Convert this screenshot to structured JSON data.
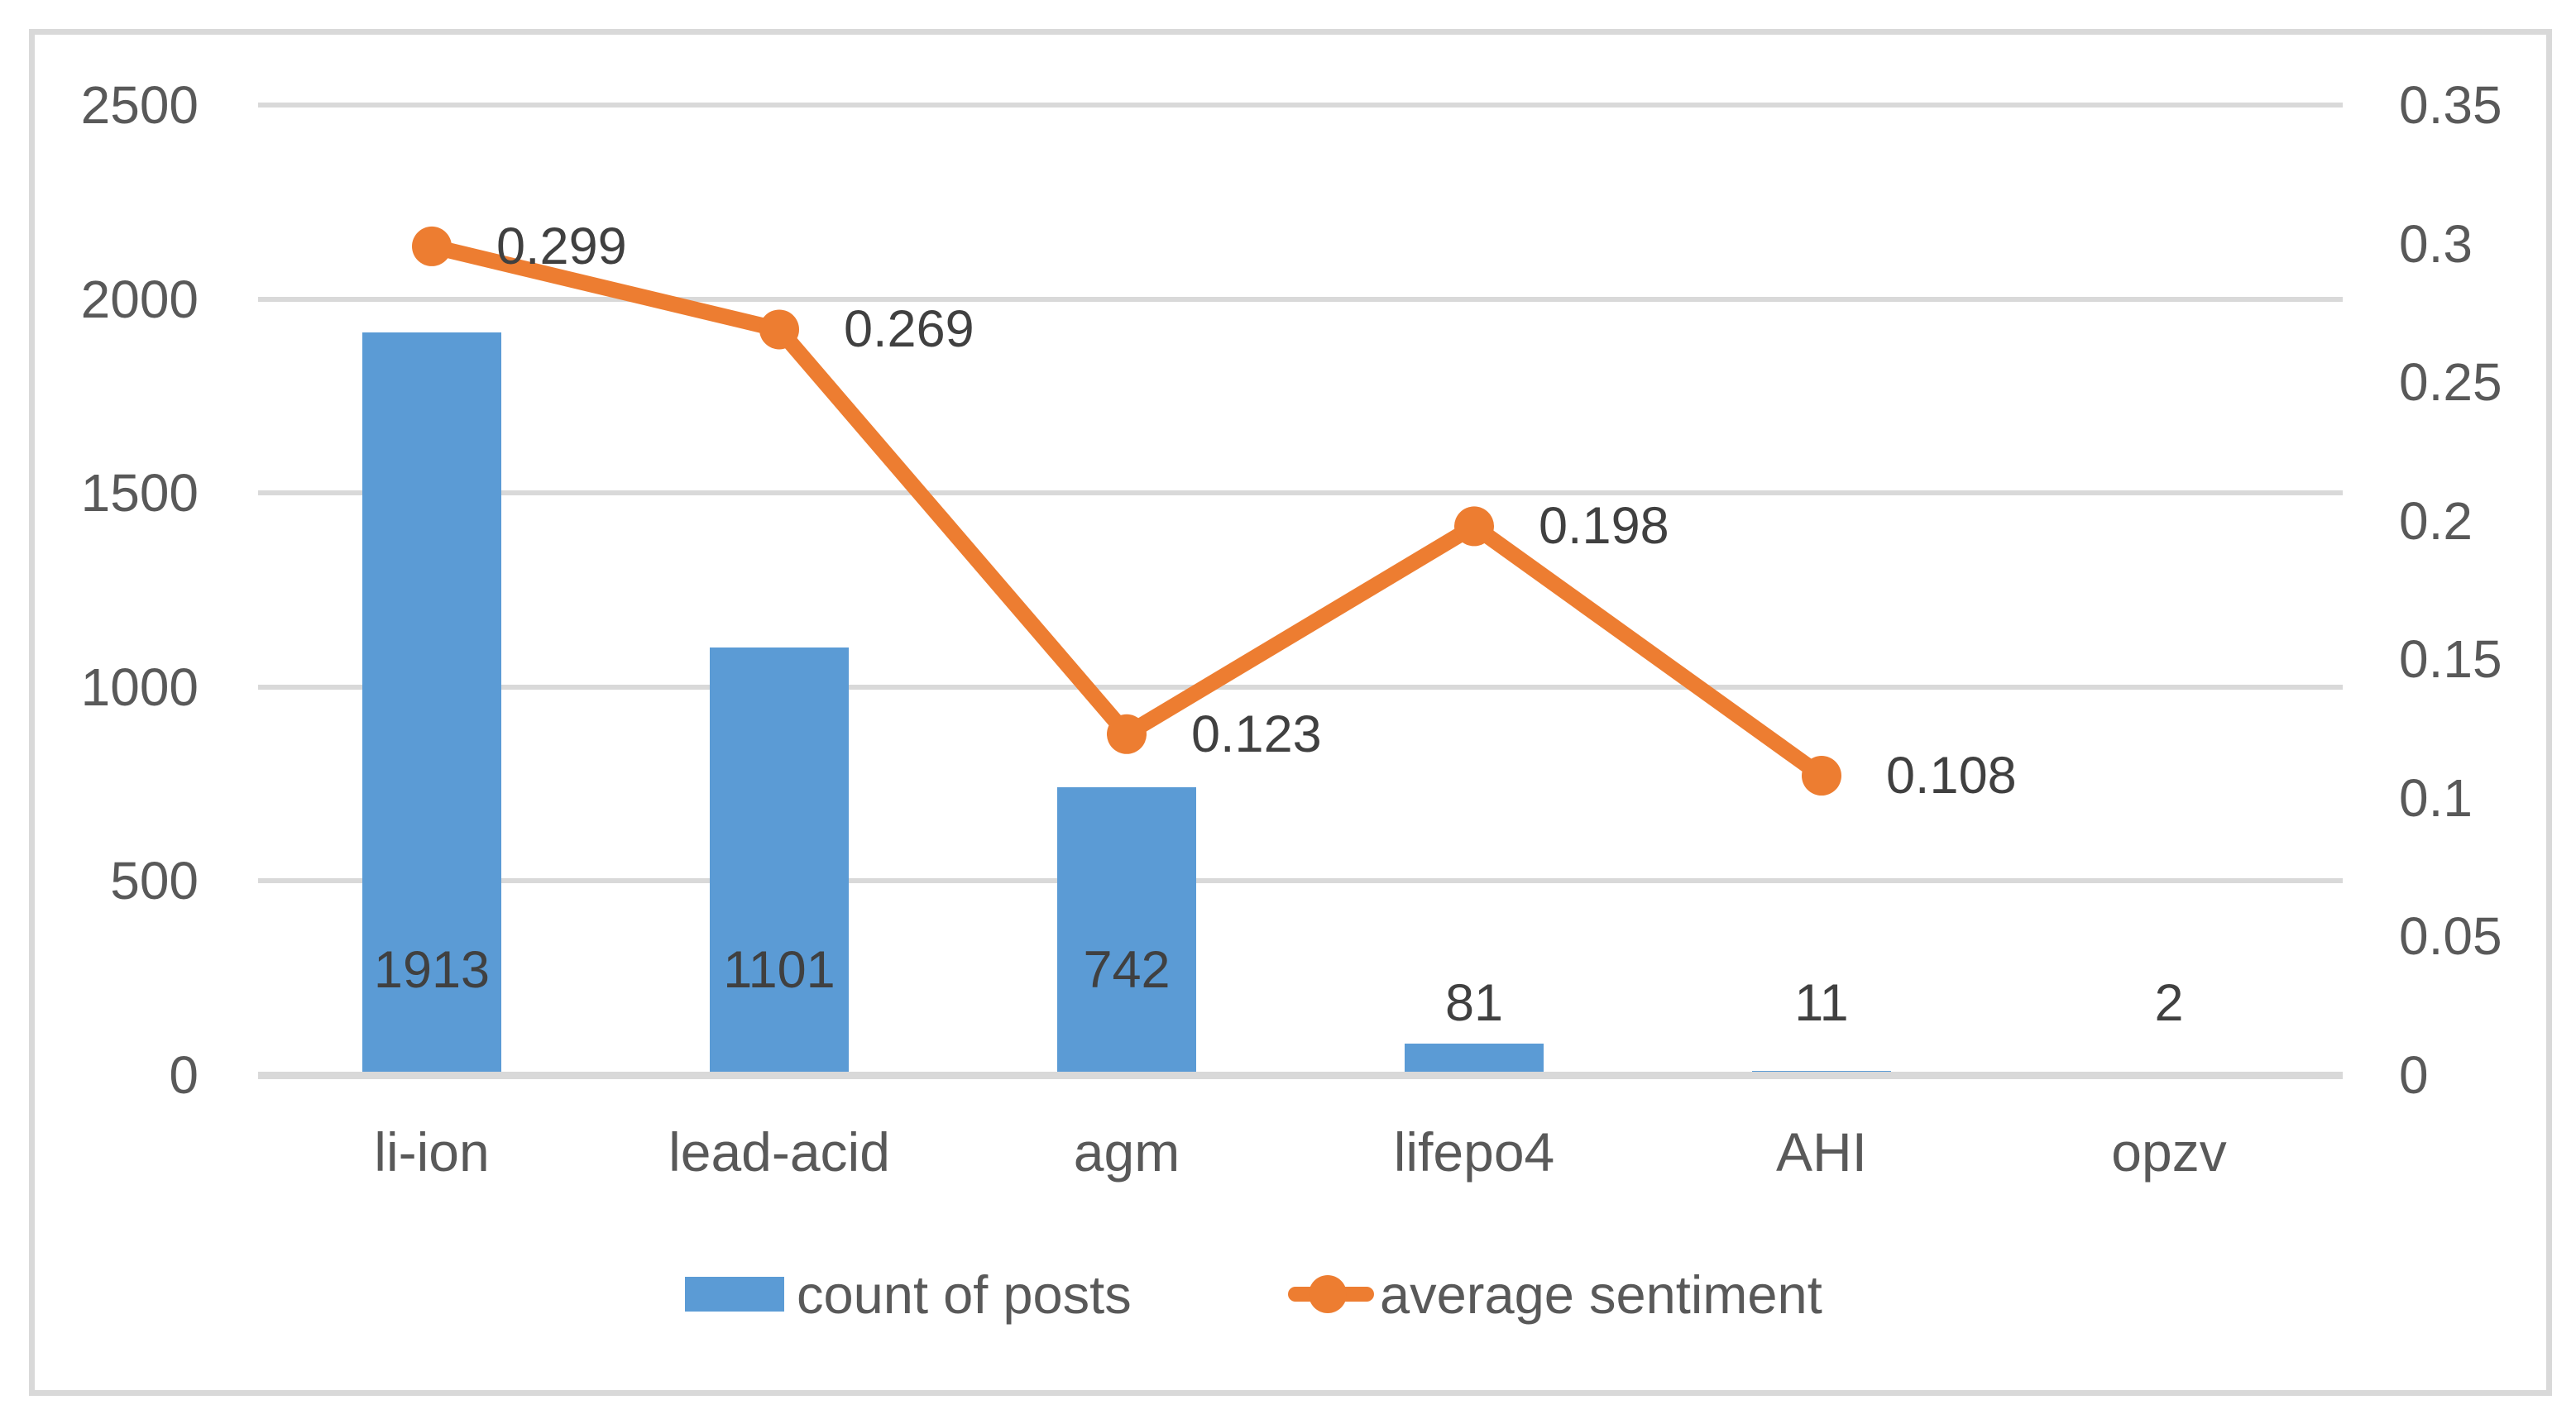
{
  "chart_data": {
    "type": "combo-bar-line",
    "title": "",
    "categories": [
      "li-ion",
      "lead-acid",
      "agm",
      "lifepo4",
      "AHI",
      "opzv"
    ],
    "series": [
      {
        "name": "count of posts",
        "type": "bar",
        "axis": "left",
        "color": "#5B9BD5",
        "values": [
          1913,
          1101,
          742,
          81,
          11,
          2
        ],
        "data_labels": [
          "1913",
          "1101",
          "742",
          "81",
          "11",
          "2"
        ]
      },
      {
        "name": "average sentiment",
        "type": "line",
        "axis": "right",
        "color": "#ED7D31",
        "values": [
          0.299,
          0.269,
          0.123,
          0.198,
          0.108,
          null
        ],
        "data_labels": [
          "0.299",
          "0.269",
          "0.123",
          "0.198",
          "0.108"
        ]
      }
    ],
    "left_axis": {
      "min": 0,
      "max": 2500,
      "step": 500,
      "tick_labels": [
        "2500",
        "2000",
        "1500",
        "1000",
        "500",
        "0"
      ]
    },
    "right_axis": {
      "min": 0,
      "max": 0.35,
      "step": 0.05,
      "tick_labels": [
        "0.35",
        "0.3",
        "0.25",
        "0.2",
        "0.15",
        "0.1",
        "0.05",
        "0"
      ]
    },
    "grid": true,
    "legend_position": "bottom",
    "colors": {
      "bar": "#5B9BD5",
      "line": "#ED7D31",
      "gridline": "#D9D9D9",
      "axis_line": "#D9D9D9",
      "frame_border": "#D9D9D9",
      "axis_text": "#595959",
      "data_label_text": "#404040",
      "background": "#FFFFFF"
    }
  },
  "legend": {
    "items": [
      {
        "label": "count of posts",
        "swatch": "bar"
      },
      {
        "label": "average sentiment",
        "swatch": "line-marker"
      }
    ]
  }
}
